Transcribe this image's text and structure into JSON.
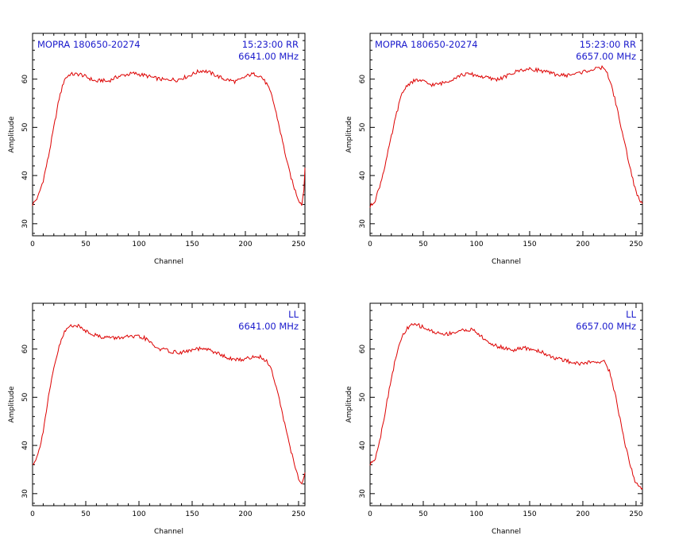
{
  "chart_data": [
    {
      "type": "line",
      "source_label": "MOPRA 180650-20274",
      "time_pol_label": "15:23:00 RR",
      "freq_label": "6641.00 MHz",
      "xlabel": "Channel",
      "ylabel": "Amplitude",
      "xlim": [
        0,
        256
      ],
      "ylim": [
        27.5,
        69.5
      ],
      "xticks": [
        0,
        50,
        100,
        150,
        200,
        250
      ],
      "yticks": [
        30,
        40,
        50,
        60
      ],
      "series": [
        {
          "color": "#dd0000",
          "x": [
            0,
            5,
            10,
            15,
            20,
            25,
            30,
            35,
            40,
            45,
            50,
            55,
            60,
            65,
            70,
            75,
            80,
            85,
            90,
            95,
            100,
            105,
            110,
            115,
            120,
            125,
            130,
            135,
            140,
            145,
            150,
            155,
            160,
            165,
            170,
            175,
            180,
            185,
            190,
            195,
            200,
            205,
            210,
            215,
            220,
            225,
            230,
            235,
            240,
            245,
            250,
            253,
            255,
            256
          ],
          "y": [
            34,
            35.5,
            39,
            44,
            50,
            56,
            60,
            61,
            61,
            61,
            60.5,
            60,
            59.5,
            59.8,
            59.5,
            60,
            60.5,
            60.8,
            61,
            61.2,
            61,
            60.8,
            60.5,
            60.2,
            60,
            59.8,
            60,
            59.8,
            60.2,
            60.5,
            61,
            61.5,
            61.8,
            61.5,
            61,
            60.5,
            60,
            59.8,
            59.5,
            59.8,
            60.5,
            61,
            61,
            60.5,
            59,
            56.5,
            52,
            47,
            42,
            38,
            35,
            34,
            37,
            42
          ]
        }
      ]
    },
    {
      "type": "line",
      "source_label": "MOPRA 180650-20274",
      "time_pol_label": "15:23:00 RR",
      "freq_label": "6657.00 MHz",
      "xlabel": "Channel",
      "ylabel": "Amplitude",
      "xlim": [
        0,
        256
      ],
      "ylim": [
        27.5,
        69.5
      ],
      "xticks": [
        0,
        50,
        100,
        150,
        200,
        250
      ],
      "yticks": [
        30,
        40,
        50,
        60
      ],
      "series": [
        {
          "color": "#dd0000",
          "x": [
            0,
            5,
            10,
            15,
            20,
            25,
            30,
            35,
            40,
            45,
            50,
            55,
            60,
            65,
            70,
            75,
            80,
            85,
            90,
            95,
            100,
            105,
            110,
            115,
            120,
            125,
            130,
            135,
            140,
            145,
            150,
            155,
            160,
            165,
            170,
            175,
            180,
            185,
            190,
            195,
            200,
            205,
            210,
            215,
            220,
            225,
            230,
            235,
            240,
            245,
            250,
            253,
            256
          ],
          "y": [
            33.5,
            35,
            38.5,
            43,
            48,
            53,
            57,
            58.8,
            59.5,
            59.8,
            59.5,
            59,
            58.8,
            59,
            59.3,
            59.8,
            60.3,
            60.8,
            61,
            61,
            60.8,
            60.5,
            60.3,
            60,
            60,
            60.3,
            60.8,
            61.3,
            61.8,
            62,
            62,
            62,
            61.8,
            61.5,
            61.2,
            61,
            60.8,
            60.8,
            61,
            61.2,
            61.5,
            61.8,
            62,
            62.2,
            62.5,
            60,
            56,
            51,
            46,
            41,
            36.5,
            35,
            34
          ]
        }
      ]
    },
    {
      "type": "line",
      "source_label": "",
      "time_pol_label": "LL",
      "freq_label": "6641.00 MHz",
      "xlabel": "Channel",
      "ylabel": "Amplitude",
      "xlim": [
        0,
        256
      ],
      "ylim": [
        27.5,
        69.5
      ],
      "xticks": [
        0,
        50,
        100,
        150,
        200,
        250
      ],
      "yticks": [
        30,
        40,
        50,
        60
      ],
      "series": [
        {
          "color": "#dd0000",
          "x": [
            0,
            5,
            10,
            15,
            20,
            25,
            30,
            35,
            40,
            45,
            50,
            55,
            60,
            65,
            70,
            75,
            80,
            85,
            90,
            95,
            100,
            105,
            110,
            115,
            120,
            125,
            130,
            135,
            140,
            145,
            150,
            155,
            160,
            165,
            170,
            175,
            180,
            185,
            190,
            195,
            200,
            205,
            210,
            215,
            220,
            225,
            230,
            235,
            240,
            245,
            250,
            253,
            256
          ],
          "y": [
            36,
            38,
            43,
            50,
            56,
            60.5,
            63.5,
            64.8,
            65,
            64.5,
            63.8,
            63.3,
            62.8,
            62.5,
            62.5,
            62.3,
            62.3,
            62.5,
            62.5,
            62.5,
            62.5,
            62.3,
            61.5,
            60.5,
            60,
            59.8,
            59.5,
            59.3,
            59.3,
            59.5,
            59.8,
            60,
            60,
            59.8,
            59.5,
            59,
            58.5,
            58,
            57.8,
            57.8,
            58,
            58.2,
            58.5,
            58.3,
            57.5,
            55.5,
            51.5,
            46.5,
            41.5,
            37,
            33,
            32,
            34
          ]
        }
      ]
    },
    {
      "type": "line",
      "source_label": "",
      "time_pol_label": "LL",
      "freq_label": "6657.00 MHz",
      "xlabel": "Channel",
      "ylabel": "Amplitude",
      "xlim": [
        0,
        256
      ],
      "ylim": [
        27.5,
        69.5
      ],
      "xticks": [
        0,
        50,
        100,
        150,
        200,
        250
      ],
      "yticks": [
        30,
        40,
        50,
        60
      ],
      "series": [
        {
          "color": "#dd0000",
          "x": [
            0,
            5,
            10,
            15,
            20,
            25,
            30,
            35,
            40,
            45,
            50,
            55,
            60,
            65,
            70,
            75,
            80,
            85,
            90,
            95,
            100,
            105,
            110,
            115,
            120,
            125,
            130,
            135,
            140,
            145,
            150,
            155,
            160,
            165,
            170,
            175,
            180,
            185,
            190,
            195,
            200,
            205,
            210,
            215,
            220,
            225,
            230,
            235,
            240,
            245,
            250,
            253,
            256
          ],
          "y": [
            36,
            37.5,
            42,
            48,
            54,
            59,
            62.5,
            64.3,
            65,
            65,
            64.5,
            64,
            63.5,
            63.3,
            63,
            63.3,
            63.5,
            63.8,
            64,
            64,
            63.5,
            62.5,
            61.5,
            61,
            60.5,
            60.3,
            60,
            59.8,
            60,
            60.2,
            60,
            59.8,
            59.5,
            59,
            58.5,
            58,
            57.8,
            57.5,
            57.3,
            57,
            57,
            57.2,
            57.3,
            57.5,
            57.3,
            55.5,
            51,
            45.5,
            40,
            35.5,
            32,
            31.5,
            31
          ]
        }
      ]
    }
  ]
}
